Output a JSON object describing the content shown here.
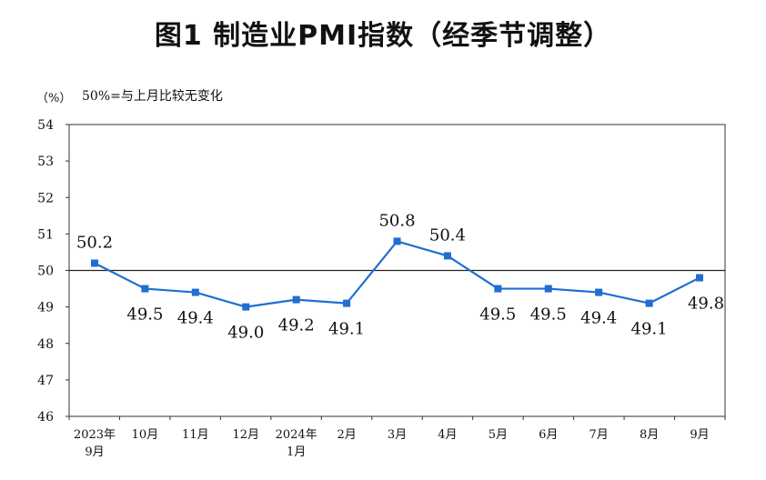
{
  "title": "图1  制造业PMI指数（经季节调整）",
  "unit_label": "（%）",
  "reference_note": "50%=与上月比较无变化",
  "chart_data": {
    "type": "line",
    "categories": [
      [
        "2023年",
        "9月"
      ],
      [
        "10月"
      ],
      [
        "11月"
      ],
      [
        "12月"
      ],
      [
        "2024年",
        "1月"
      ],
      [
        "2月"
      ],
      [
        "3月"
      ],
      [
        "4月"
      ],
      [
        "5月"
      ],
      [
        "6月"
      ],
      [
        "7月"
      ],
      [
        "8月"
      ],
      [
        "9月"
      ]
    ],
    "values": [
      50.2,
      49.5,
      49.4,
      49.0,
      49.2,
      49.1,
      50.8,
      50.4,
      49.5,
      49.5,
      49.4,
      49.1,
      49.8
    ],
    "data_labels": [
      "50.2",
      "49.5",
      "49.4",
      "49.0",
      "49.2",
      "49.1",
      "50.8",
      "50.4",
      "49.5",
      "49.5",
      "49.4",
      "49.1",
      "49.8"
    ],
    "label_position": [
      "above",
      "below",
      "below",
      "below",
      "below",
      "below",
      "above",
      "above",
      "below",
      "below",
      "below",
      "below",
      "below"
    ],
    "ylim": [
      46,
      54
    ],
    "yticks": [
      "46",
      "47",
      "48",
      "49",
      "50",
      "51",
      "52",
      "53",
      "54"
    ],
    "reference_line": 50,
    "line_color": "#1f6fd1",
    "marker_color": "#1f6fd1",
    "grid": false,
    "legend": "none"
  }
}
